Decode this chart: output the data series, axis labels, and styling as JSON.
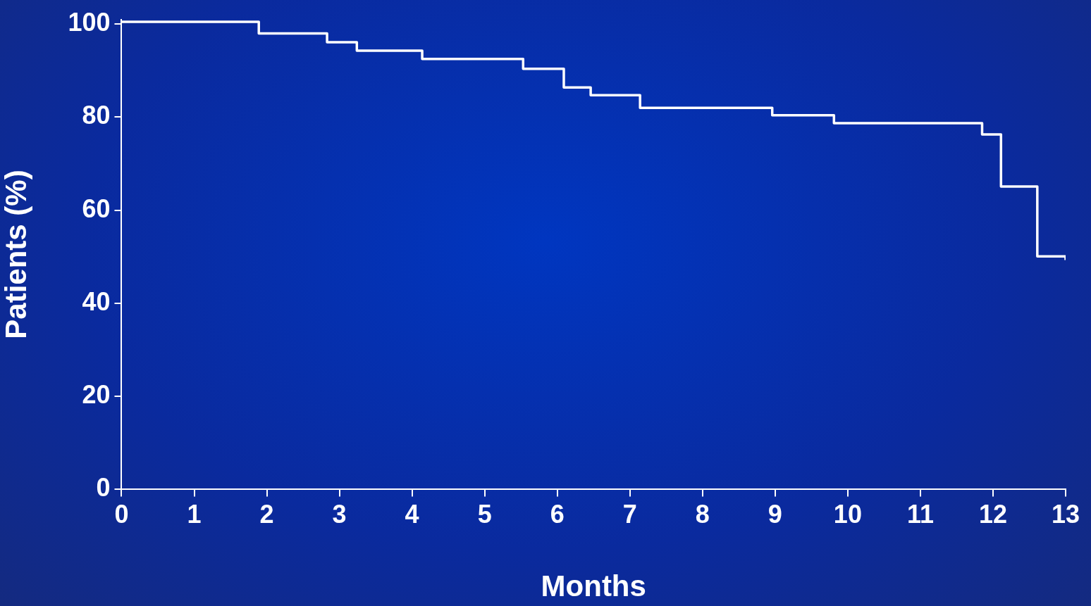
{
  "chart_data": {
    "type": "step",
    "xlabel": "Months",
    "ylabel": "Patients (%)",
    "x": [
      0,
      0.6,
      1.89,
      2.83,
      3.24,
      4.14,
      5.53,
      6.09,
      6.46,
      7.14,
      8.96,
      9.81,
      11.85,
      12.11,
      12.61,
      13
    ],
    "series": [
      {
        "color": "#ffffff",
        "values": [
          100.5,
          100.5,
          98,
          96.1,
          94.3,
          92.5,
          90.4,
          86.4,
          84.7,
          82,
          80.4,
          78.7,
          76.3,
          65.1,
          50.1,
          49.3
        ]
      }
    ],
    "xlim": [
      0,
      13
    ],
    "xticks": [
      0,
      1,
      2,
      3,
      4,
      5,
      6,
      7,
      8,
      9,
      10,
      11,
      12,
      13
    ],
    "ylim": [
      0,
      101
    ],
    "yticks": [
      0,
      20,
      40,
      60,
      80,
      100
    ],
    "grid": false,
    "legend": false,
    "marker": "none",
    "line_style": "solid"
  }
}
